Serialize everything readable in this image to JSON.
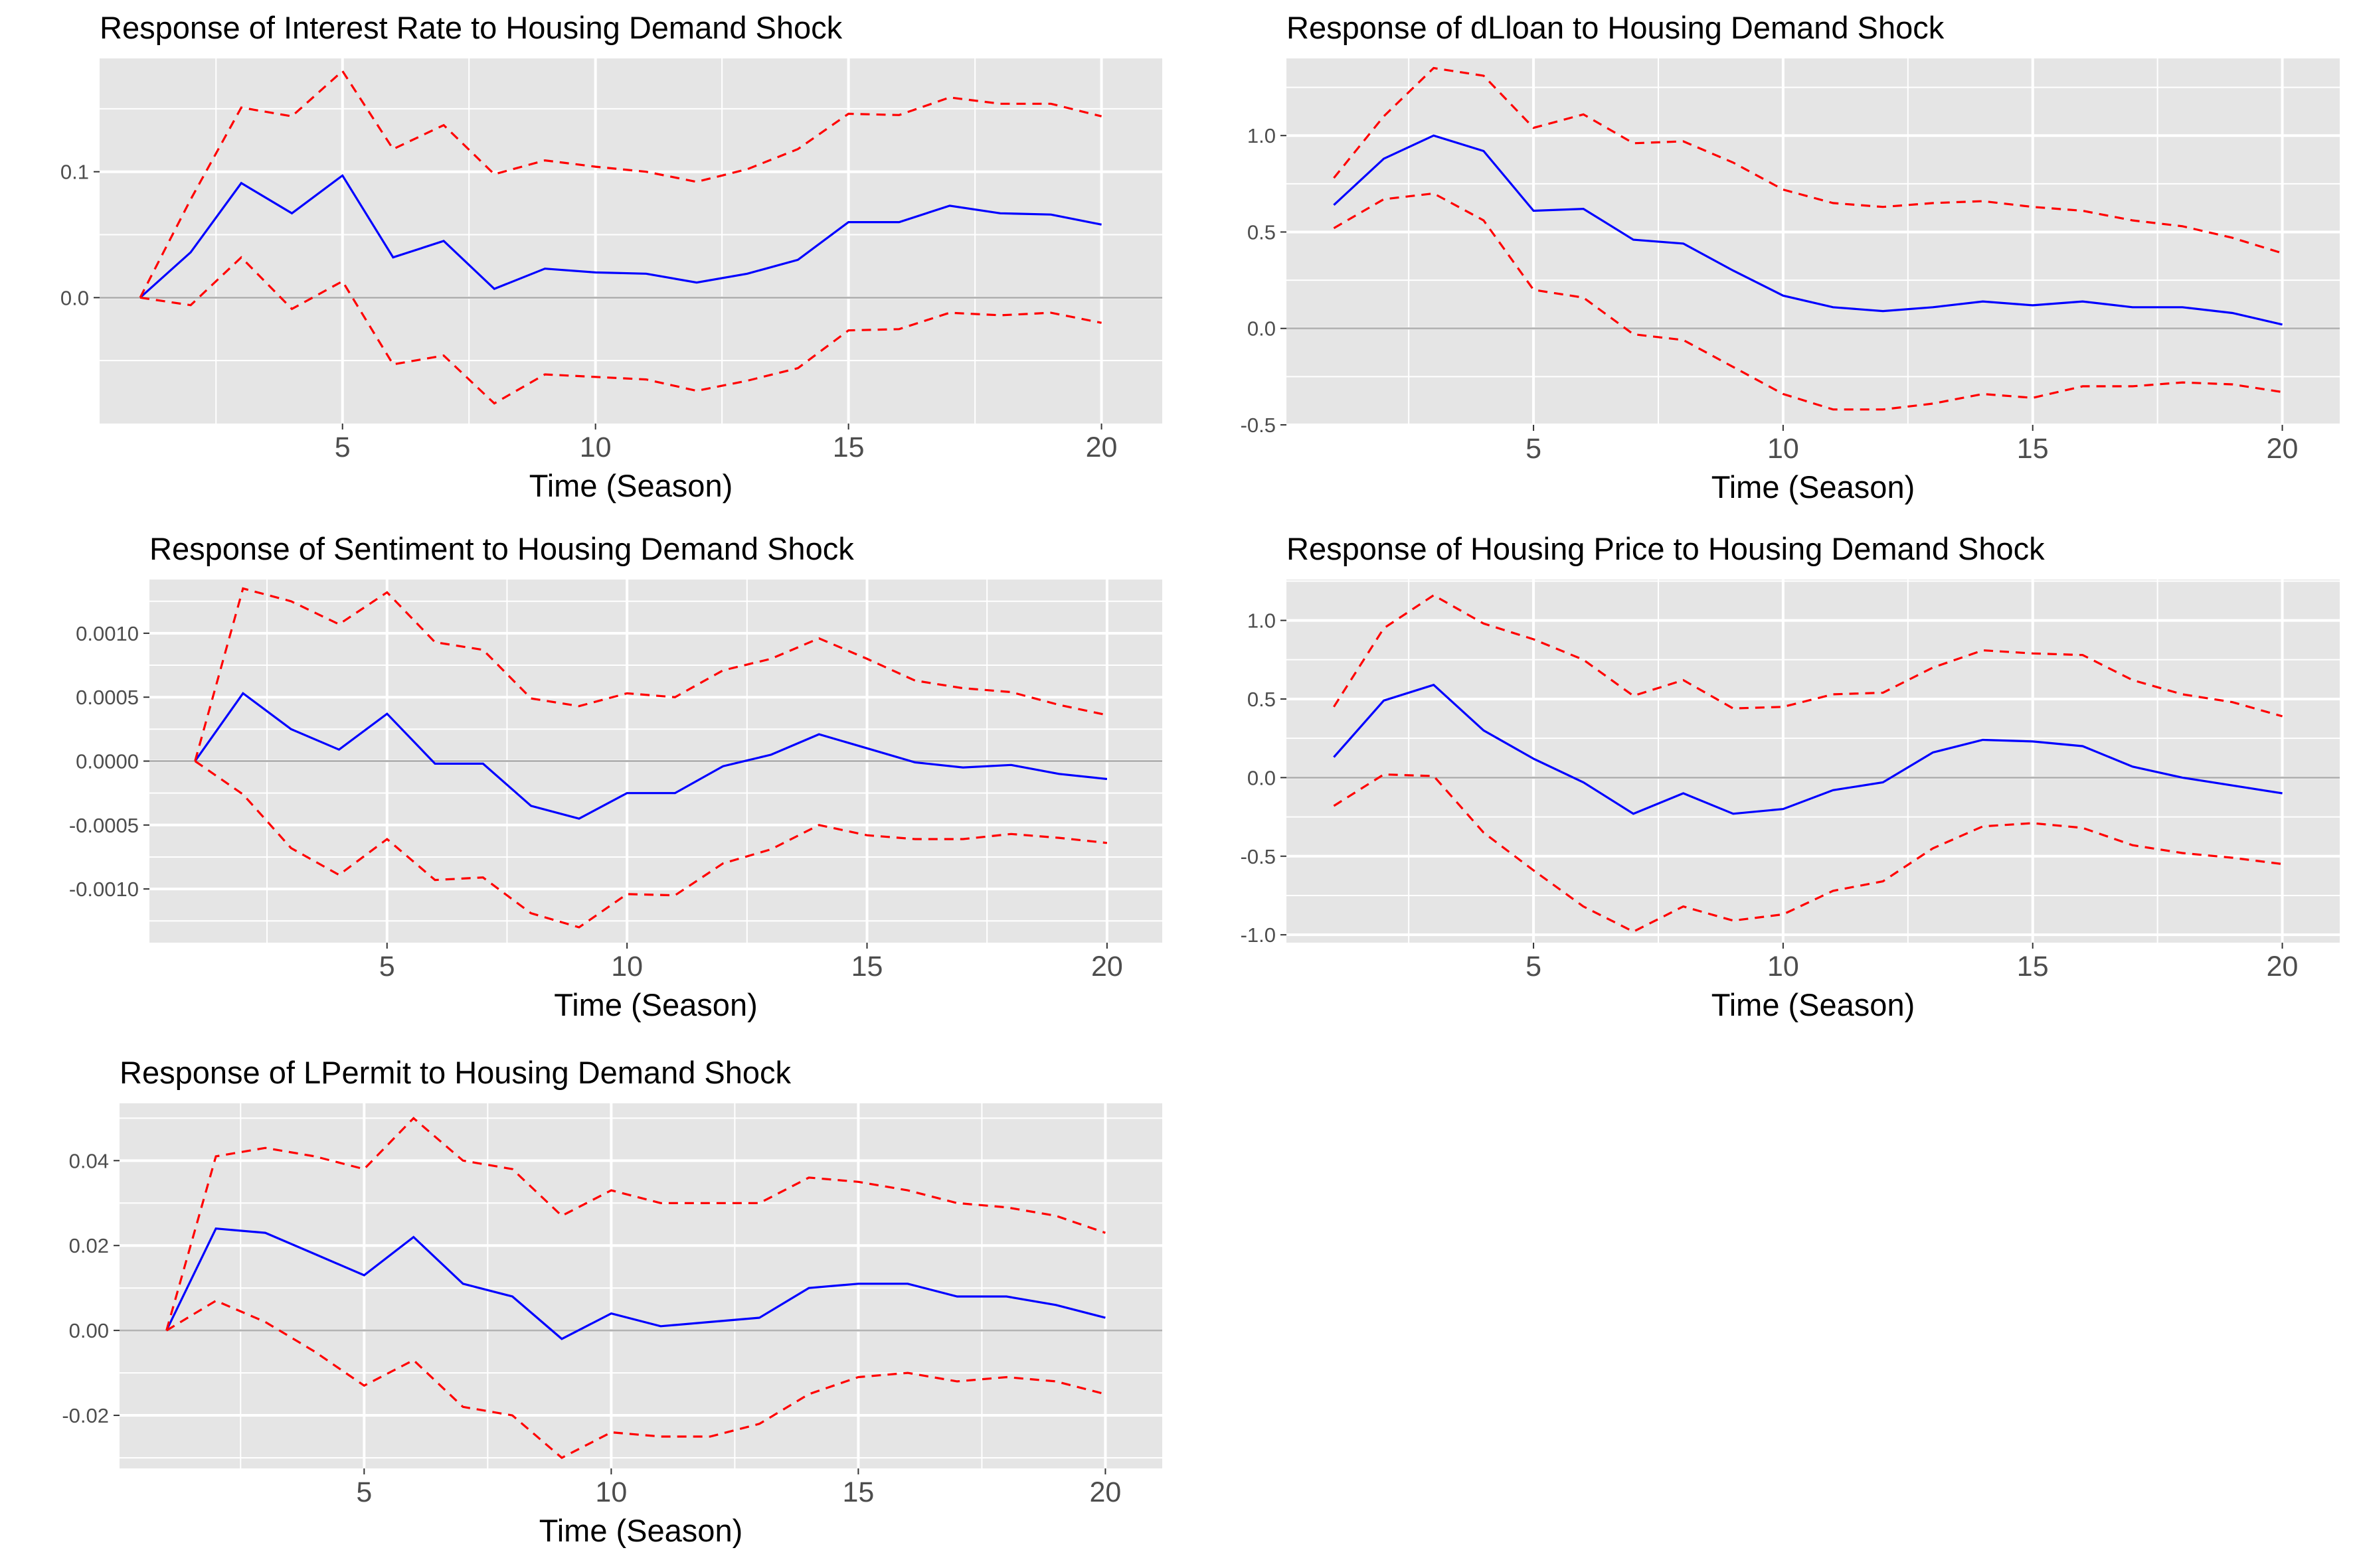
{
  "colors": {
    "panel_bg": "#e5e5e5",
    "grid": "#ffffff",
    "zero_line": "#b3b3b3",
    "response": "#0000ff",
    "bands": "#ff0000"
  },
  "chart_data": [
    {
      "type": "line",
      "title": "Response of Interest Rate to Housing Demand Shock",
      "xlabel": "Time (Season)",
      "ylabel": "",
      "xlim": [
        0.2,
        21.2
      ],
      "ylim": [
        -0.1,
        0.19
      ],
      "x_ticks": [
        5,
        10,
        15,
        20
      ],
      "y_ticks": [
        0.0,
        0.1
      ],
      "y_tick_labels": [
        "0.0",
        "0.1"
      ],
      "x": [
        1,
        2,
        3,
        4,
        5,
        6,
        7,
        8,
        9,
        10,
        11,
        12,
        13,
        14,
        15,
        16,
        17,
        18,
        19,
        20
      ],
      "series": [
        {
          "role": "response",
          "values": [
            0.0,
            0.036,
            0.091,
            0.067,
            0.097,
            0.032,
            0.045,
            0.007,
            0.023,
            0.02,
            0.019,
            0.012,
            0.019,
            0.03,
            0.06,
            0.06,
            0.073,
            0.067,
            0.066,
            0.058
          ]
        },
        {
          "role": "upper",
          "values": [
            0.0,
            0.078,
            0.151,
            0.144,
            0.18,
            0.118,
            0.137,
            0.098,
            0.109,
            0.104,
            0.1,
            0.092,
            0.102,
            0.118,
            0.146,
            0.145,
            0.159,
            0.154,
            0.154,
            0.144
          ]
        },
        {
          "role": "lower",
          "values": [
            0.0,
            -0.006,
            0.032,
            -0.009,
            0.013,
            -0.053,
            -0.046,
            -0.084,
            -0.061,
            -0.063,
            -0.065,
            -0.074,
            -0.066,
            -0.056,
            -0.026,
            -0.025,
            -0.012,
            -0.014,
            -0.012,
            -0.02
          ]
        }
      ]
    },
    {
      "type": "line",
      "title": "Response of dLloan to Housing Demand Shock",
      "xlabel": "Time (Season)",
      "ylabel": "",
      "xlim": [
        0.05,
        21.15
      ],
      "ylim": [
        -0.5,
        1.4
      ],
      "x_ticks": [
        5,
        10,
        15,
        20
      ],
      "y_ticks": [
        -0.5,
        0.0,
        0.5,
        1.0
      ],
      "y_tick_labels": [
        "-0.5",
        "0.0",
        "0.5",
        "1.0"
      ],
      "x": [
        1,
        2,
        3,
        4,
        5,
        6,
        7,
        8,
        9,
        10,
        11,
        12,
        13,
        14,
        15,
        16,
        17,
        18,
        19,
        20
      ],
      "series": [
        {
          "role": "response",
          "values": [
            0.64,
            0.88,
            1.0,
            0.92,
            0.61,
            0.62,
            0.46,
            0.44,
            0.3,
            0.17,
            0.11,
            0.09,
            0.11,
            0.14,
            0.12,
            0.14,
            0.11,
            0.11,
            0.08,
            0.02
          ]
        },
        {
          "role": "upper",
          "values": [
            0.78,
            1.1,
            1.35,
            1.31,
            1.04,
            1.11,
            0.96,
            0.97,
            0.86,
            0.72,
            0.65,
            0.63,
            0.65,
            0.66,
            0.63,
            0.61,
            0.56,
            0.53,
            0.47,
            0.39
          ]
        },
        {
          "role": "lower",
          "values": [
            0.52,
            0.67,
            0.7,
            0.56,
            0.2,
            0.16,
            -0.03,
            -0.06,
            -0.2,
            -0.34,
            -0.42,
            -0.42,
            -0.39,
            -0.34,
            -0.36,
            -0.3,
            -0.3,
            -0.28,
            -0.29,
            -0.33
          ]
        }
      ]
    },
    {
      "type": "line",
      "title": "Response of Sentiment to Housing Demand Shock",
      "xlabel": "Time (Season)",
      "ylabel": "",
      "xlim": [
        0.05,
        21.15
      ],
      "ylim": [
        -0.00142,
        0.00142
      ],
      "x_ticks": [
        5,
        10,
        15,
        20
      ],
      "y_ticks": [
        -0.001,
        -0.0005,
        0.0,
        0.0005,
        0.001
      ],
      "y_tick_labels": [
        "-0.0010",
        "-0.0005",
        "0.0000",
        "0.0005",
        "0.0010"
      ],
      "x": [
        1,
        2,
        3,
        4,
        5,
        6,
        7,
        8,
        9,
        10,
        11,
        12,
        13,
        14,
        15,
        16,
        17,
        18,
        19,
        20
      ],
      "series": [
        {
          "role": "response",
          "values": [
            0.0,
            0.00053,
            0.00025,
            9e-05,
            0.00037,
            -2e-05,
            -2e-05,
            -0.00035,
            -0.00045,
            -0.00025,
            -0.00025,
            -4e-05,
            5e-05,
            0.00021,
            0.0001,
            -1e-05,
            -5e-05,
            -3e-05,
            -0.0001,
            -0.00014
          ]
        },
        {
          "role": "upper",
          "values": [
            0.0,
            0.00135,
            0.00125,
            0.00107,
            0.00132,
            0.00093,
            0.00087,
            0.00049,
            0.00043,
            0.00053,
            0.0005,
            0.00071,
            0.0008,
            0.00096,
            0.0008,
            0.00063,
            0.00057,
            0.00054,
            0.00044,
            0.00036
          ]
        },
        {
          "role": "lower",
          "values": [
            0.0,
            -0.00026,
            -0.00068,
            -0.00089,
            -0.00061,
            -0.00093,
            -0.00091,
            -0.00119,
            -0.0013,
            -0.00104,
            -0.00105,
            -0.0008,
            -0.00069,
            -0.0005,
            -0.00058,
            -0.00061,
            -0.00061,
            -0.00057,
            -0.0006,
            -0.00064
          ]
        }
      ]
    },
    {
      "type": "line",
      "title": "Response of Housing Price to Housing Demand Shock",
      "xlabel": "Time (Season)",
      "ylabel": "",
      "xlim": [
        0.05,
        21.15
      ],
      "ylim": [
        -1.05,
        1.26
      ],
      "x_ticks": [
        5,
        10,
        15,
        20
      ],
      "y_ticks": [
        -1.0,
        -0.5,
        0.0,
        0.5,
        1.0
      ],
      "y_tick_labels": [
        "-1.0",
        "-0.5",
        "0.0",
        "0.5",
        "1.0"
      ],
      "x": [
        1,
        2,
        3,
        4,
        5,
        6,
        7,
        8,
        9,
        10,
        11,
        12,
        13,
        14,
        15,
        16,
        17,
        18,
        19,
        20
      ],
      "series": [
        {
          "role": "response",
          "values": [
            0.13,
            0.49,
            0.59,
            0.3,
            0.12,
            -0.03,
            -0.23,
            -0.1,
            -0.23,
            -0.2,
            -0.08,
            -0.03,
            0.16,
            0.24,
            0.23,
            0.2,
            0.07,
            0.0,
            -0.05,
            -0.1
          ]
        },
        {
          "role": "upper",
          "values": [
            0.45,
            0.95,
            1.16,
            0.98,
            0.88,
            0.75,
            0.52,
            0.62,
            0.44,
            0.45,
            0.53,
            0.54,
            0.7,
            0.81,
            0.79,
            0.78,
            0.62,
            0.53,
            0.48,
            0.39
          ]
        },
        {
          "role": "lower",
          "values": [
            -0.18,
            0.02,
            0.01,
            -0.35,
            -0.59,
            -0.82,
            -0.98,
            -0.82,
            -0.91,
            -0.87,
            -0.72,
            -0.66,
            -0.45,
            -0.31,
            -0.29,
            -0.32,
            -0.43,
            -0.48,
            -0.51,
            -0.55
          ]
        }
      ]
    },
    {
      "type": "line",
      "title": "Response of LPermit to Housing Demand Shock",
      "xlabel": "Time (Season)",
      "ylabel": "",
      "xlim": [
        0.05,
        21.15
      ],
      "ylim": [
        -0.0325,
        0.0535
      ],
      "x_ticks": [
        5,
        10,
        15,
        20
      ],
      "y_ticks": [
        -0.02,
        0.0,
        0.02,
        0.04
      ],
      "y_tick_labels": [
        "-0.02",
        "0.00",
        "0.02",
        "0.04"
      ],
      "x": [
        1,
        2,
        3,
        4,
        5,
        6,
        7,
        8,
        9,
        10,
        11,
        12,
        13,
        14,
        15,
        16,
        17,
        18,
        19,
        20
      ],
      "series": [
        {
          "role": "response",
          "values": [
            0.0,
            0.024,
            0.023,
            0.018,
            0.013,
            0.022,
            0.011,
            0.008,
            -0.002,
            0.004,
            0.001,
            0.002,
            0.003,
            0.01,
            0.011,
            0.011,
            0.008,
            0.008,
            0.006,
            0.003
          ]
        },
        {
          "role": "upper",
          "values": [
            0.0,
            0.041,
            0.043,
            0.041,
            0.038,
            0.05,
            0.04,
            0.038,
            0.027,
            0.033,
            0.03,
            0.03,
            0.03,
            0.036,
            0.035,
            0.033,
            0.03,
            0.029,
            0.027,
            0.023
          ]
        },
        {
          "role": "lower",
          "values": [
            0.0,
            0.007,
            0.002,
            -0.005,
            -0.013,
            -0.007,
            -0.018,
            -0.02,
            -0.03,
            -0.024,
            -0.025,
            -0.025,
            -0.022,
            -0.015,
            -0.011,
            -0.01,
            -0.012,
            -0.011,
            -0.012,
            -0.015
          ]
        }
      ]
    }
  ]
}
